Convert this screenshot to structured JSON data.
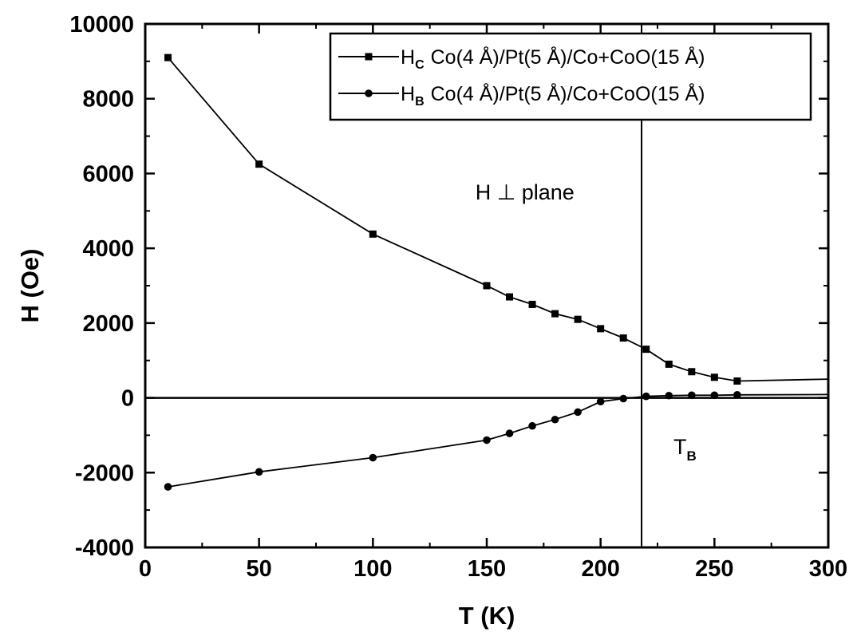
{
  "chart_data": {
    "type": "line",
    "xlabel": "T (K)",
    "ylabel": "H (Oe)",
    "xlim": [
      0,
      300
    ],
    "ylim": [
      -4000,
      10000
    ],
    "xticks": [
      "0",
      "50",
      "100",
      "150",
      "200",
      "250",
      "300"
    ],
    "yticks": [
      "-4000",
      "-2000",
      "0",
      "2000",
      "4000",
      "6000",
      "8000",
      "10000"
    ],
    "grid": false,
    "legend_position": "top-right",
    "series": [
      {
        "symbol": "H",
        "subscript": "C",
        "label": "Co(4 Å)/Pt(5 Å)/Co+CoO(15 Å)",
        "marker": "square",
        "color": "#000000",
        "x": [
          10,
          50,
          100,
          150,
          160,
          170,
          180,
          190,
          200,
          210,
          220,
          230,
          240,
          250,
          260,
          300
        ],
        "y": [
          9100,
          6250,
          4380,
          3000,
          2700,
          2500,
          2250,
          2100,
          1850,
          1600,
          1300,
          900,
          700,
          550,
          450,
          500
        ]
      },
      {
        "symbol": "H",
        "subscript": "B",
        "label": "Co(4 Å)/Pt(5 Å)/Co+CoO(15 Å)",
        "marker": "circle",
        "color": "#000000",
        "x": [
          10,
          50,
          100,
          150,
          160,
          170,
          180,
          190,
          200,
          210,
          220,
          230,
          240,
          250,
          260,
          300
        ],
        "y": [
          -2380,
          -1980,
          -1600,
          -1130,
          -950,
          -750,
          -580,
          -380,
          -100,
          -20,
          40,
          60,
          70,
          70,
          80,
          90
        ]
      }
    ],
    "reference_lines": {
      "vertical_x": 218,
      "horizontal_y": 0
    },
    "annotations": [
      {
        "text": "H ⊥ plane",
        "x": 145,
        "y": 5300
      },
      {
        "symbol": "T",
        "subscript": "B",
        "x": 232,
        "y": -1500
      }
    ]
  }
}
